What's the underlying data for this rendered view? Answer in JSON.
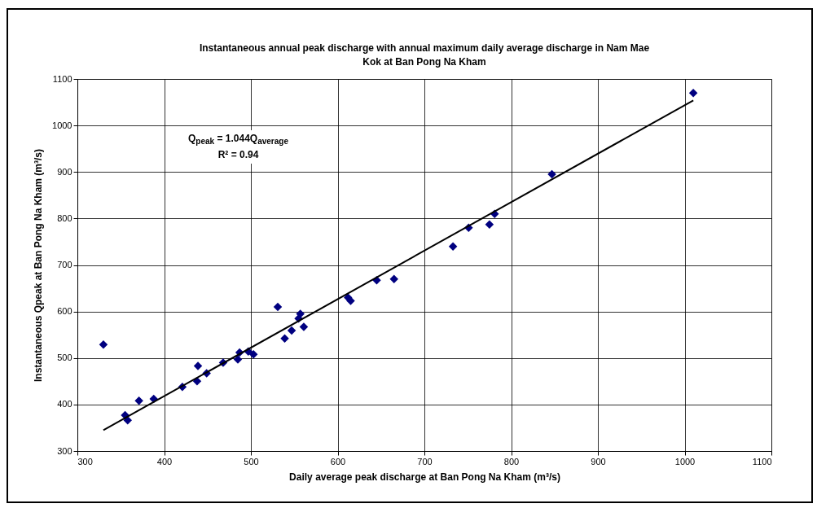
{
  "chart_data": {
    "type": "scatter",
    "title": "Instantaneous annual peak discharge with annual maximum daily average discharge in Nam Mae Kok at Ban Pong Na Kham",
    "xlabel": "Daily average peak discharge at Ban Pong Na Kham  (m³/s)",
    "ylabel": "Instantaneous Qpeak at Ban Pong Na Kham  (m³/s)",
    "annotations": [
      "Q$_{peak}$ = 1.044Q$_{average}$",
      "R² = 0.94"
    ],
    "xlim": [
      300,
      1100
    ],
    "xticks": [
      300,
      400,
      500,
      600,
      700,
      800,
      900,
      1000,
      1100
    ],
    "ylim": [
      300,
      1100
    ],
    "yticks": [
      300,
      400,
      500,
      600,
      700,
      800,
      900,
      1000,
      1100
    ],
    "grid": true,
    "marker": "diamond",
    "series": [
      {
        "color": "#000080",
        "x": [
          330,
          355,
          358,
          371,
          388,
          421,
          438,
          439,
          449,
          468,
          485,
          487,
          497,
          503,
          531,
          539,
          547,
          555,
          557,
          561,
          612,
          615,
          645,
          665,
          733,
          751,
          775,
          781,
          847,
          1010
        ],
        "values": [
          529,
          377,
          366,
          408,
          412,
          438,
          450,
          483,
          467,
          490,
          497,
          512,
          514,
          508,
          610,
          542,
          559,
          585,
          595,
          567,
          630,
          623,
          667,
          670,
          740,
          780,
          787,
          810,
          895,
          1070
        ]
      },
      {
        "type": "line",
        "color": "#000000",
        "line_style": "solid",
        "marker": "none",
        "x": [
          330,
          1010
        ],
        "values": [
          345,
          1054
        ]
      }
    ]
  }
}
